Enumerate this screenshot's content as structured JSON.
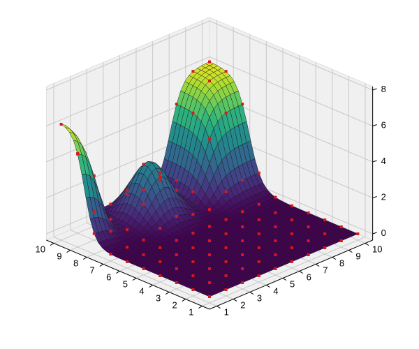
{
  "chart_data": {
    "type": "surface3d",
    "title": "",
    "xlabel": "",
    "ylabel": "",
    "zlabel": "",
    "x_ticks": [
      "1",
      "2",
      "3",
      "4",
      "5",
      "6",
      "7",
      "8",
      "9",
      "10"
    ],
    "y_ticks": [
      "1",
      "2",
      "3",
      "4",
      "5",
      "6",
      "7",
      "8",
      "9",
      "10"
    ],
    "z_ticks": [
      "0",
      "2",
      "4",
      "6",
      "8"
    ],
    "xlim": [
      1,
      10
    ],
    "ylim": [
      1,
      10
    ],
    "zlim": [
      0,
      8
    ],
    "colormap": "viridis",
    "grid": true,
    "markers": {
      "color": "#d7191c",
      "shape": "square",
      "at": "integer grid points"
    },
    "z_values_note": "rows = y 1..10 (right axis), cols = x 1..10 (left axis)",
    "z": [
      [
        0.0,
        0.0,
        0.0,
        0.0,
        0.0,
        0.0,
        0.0,
        0.0,
        0.0,
        0.0
      ],
      [
        0.0,
        0.0,
        0.0,
        0.0,
        0.0,
        0.0,
        0.0,
        0.0,
        0.0,
        0.0
      ],
      [
        0.0,
        0.0,
        0.0,
        0.0,
        0.0,
        0.0,
        0.0,
        0.0,
        0.0,
        0.0
      ],
      [
        0.0,
        0.0,
        0.0,
        0.0,
        0.0,
        0.0,
        0.0,
        0.0,
        0.0,
        0.0
      ],
      [
        0.0,
        0.0,
        0.0,
        0.0,
        0.0,
        0.0,
        0.0,
        0.0,
        0.0,
        0.0
      ],
      [
        0.0,
        0.0,
        0.0,
        0.0,
        0.0,
        0.0,
        0.0,
        0.0,
        0.0,
        0.0
      ],
      [
        0.0,
        0.0,
        0.0,
        0.0,
        0.0,
        0.0,
        3.0,
        0.0,
        0.0,
        0.0
      ],
      [
        6.0,
        6.0,
        6.0,
        0.0,
        0.0,
        3.0,
        3.0,
        3.0,
        0.0,
        0.0
      ],
      [
        6.0,
        6.0,
        6.0,
        0.0,
        0.0,
        0.0,
        3.0,
        0.0,
        6.2,
        6.2
      ],
      [
        6.0,
        6.0,
        6.0,
        0.0,
        0.0,
        0.0,
        0.0,
        0.0,
        6.2,
        6.2
      ]
    ]
  },
  "axes": {
    "x_tick_labels": [
      "1",
      "2",
      "3",
      "4",
      "5",
      "6",
      "7",
      "8",
      "9",
      "10"
    ],
    "y_tick_labels": [
      "1",
      "2",
      "3",
      "4",
      "5",
      "6",
      "7",
      "8",
      "9",
      "10"
    ],
    "z_tick_labels": [
      "0",
      "2",
      "4",
      "6",
      "8"
    ]
  },
  "colors": {
    "pane": "#f0f0f0",
    "grid": "#c8c8c8",
    "marker": "#d7191c",
    "axis": "#000000"
  }
}
